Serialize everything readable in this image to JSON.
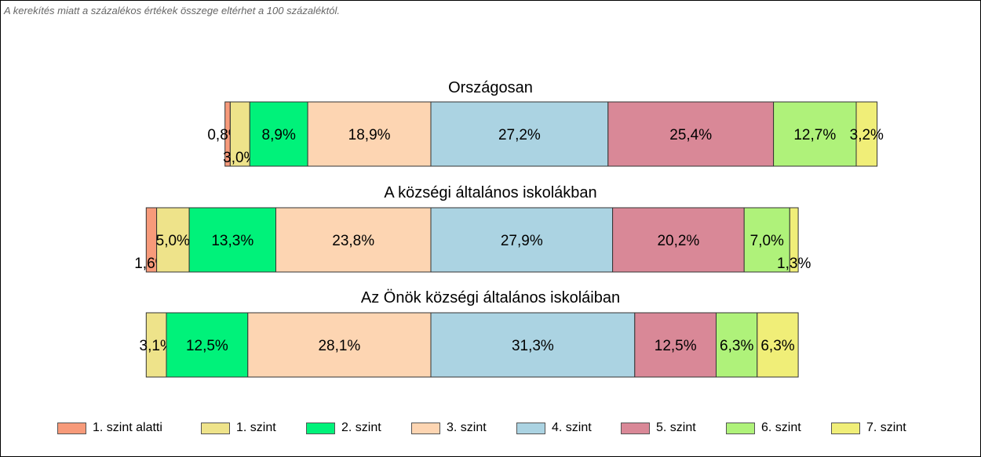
{
  "note": "A kerekítés miatt a  százalékos értékek összege eltérhet a 100 százaléktól.",
  "colors": {
    "1. szint alatti": "#F79A7A",
    "1. szint": "#EEE38A",
    "2. szint": "#00F27A",
    "3. szint": "#FDD5B2",
    "4. szint": "#ABD3E2",
    "5. szint": "#D98897",
    "6. szint": "#AFF27A",
    "7. szint": "#F0EE78"
  },
  "chart_data": {
    "type": "bar",
    "orientation": "horizontal-stacked-100",
    "categories": [
      "1. szint alatti",
      "1. szint",
      "2. szint",
      "3. szint",
      "4. szint",
      "5. szint",
      "6. szint",
      "7. szint"
    ],
    "groups": [
      {
        "title": "Országosan",
        "values": [
          0.8,
          3.0,
          8.9,
          18.9,
          27.2,
          25.4,
          12.7,
          3.2
        ],
        "labels": [
          "0,8%",
          "3,0%",
          "8,9%",
          "18,9%",
          "27,2%",
          "25,4%",
          "12,7%",
          "3,2%"
        ]
      },
      {
        "title": "A községi általános iskolákban",
        "values": [
          1.6,
          5.0,
          13.3,
          23.8,
          27.9,
          20.2,
          7.0,
          1.3
        ],
        "labels": [
          "1,6%",
          "5,0%",
          "13,3%",
          "23,8%",
          "27,9%",
          "20,2%",
          "7,0%",
          "1,3%"
        ]
      },
      {
        "title": "Az Önök községi általános iskoláiban",
        "values": [
          0.0,
          3.1,
          12.5,
          28.1,
          31.3,
          12.5,
          6.3,
          6.3
        ],
        "labels": [
          "",
          "3,1%",
          "12,5%",
          "28,1%",
          "31,3%",
          "12,5%",
          "6,3%",
          "6,3%"
        ]
      }
    ],
    "legend": [
      "1. szint alatti",
      "1. szint",
      "2. szint",
      "3. szint",
      "4. szint",
      "5. szint",
      "6. szint",
      "7. szint"
    ],
    "legend_position": "bottom"
  }
}
